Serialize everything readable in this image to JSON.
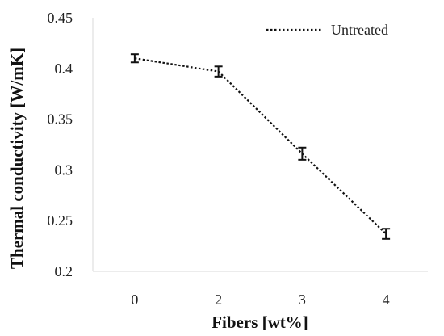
{
  "chart_data": {
    "type": "line",
    "categories": [
      "0",
      "2",
      "3",
      "4"
    ],
    "series": [
      {
        "name": "Untreated",
        "values": [
          0.41,
          0.397,
          0.316,
          0.237
        ],
        "error": [
          0.004,
          0.005,
          0.006,
          0.005
        ],
        "color": "#111111",
        "line_style": "dotted"
      }
    ],
    "xlabel": "Fibers [wt%]",
    "ylabel": "Thermal conductivity [W/mK]",
    "ylim": [
      0.2,
      0.45
    ],
    "yticks": [
      "0.2",
      "0.25",
      "0.3",
      "0.35",
      "0.4",
      "0.45"
    ],
    "grid": false,
    "legend_position": "top-right"
  }
}
